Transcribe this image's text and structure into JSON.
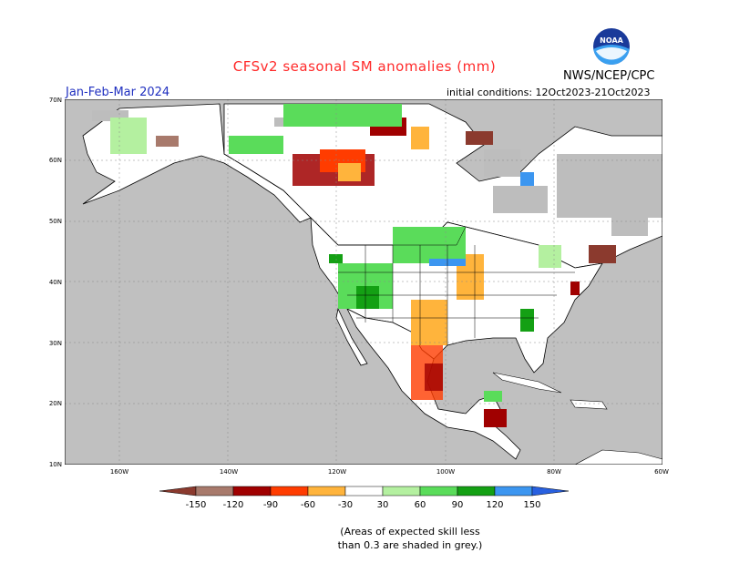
{
  "header": {
    "title": "CFSv2 seasonal SM anomalies (mm)",
    "season": "Jan-Feb-Mar 2024",
    "initial_conditions": "initial conditions: 12Oct2023-21Oct2023",
    "agency": "NWS/NCEP/CPC",
    "logo_text": "NOAA"
  },
  "axes": {
    "lat_labels": [
      "70N",
      "60N",
      "50N",
      "40N",
      "30N",
      "20N",
      "10N"
    ],
    "lon_labels": [
      "160W",
      "140W",
      "120W",
      "100W",
      "80W",
      "60W"
    ],
    "lon_range": [
      -170,
      -60
    ],
    "lat_range": [
      10,
      70
    ]
  },
  "legend": {
    "labels": [
      "-150",
      "-120",
      "-90",
      "-60",
      "-30",
      "30",
      "60",
      "90",
      "120",
      "150"
    ],
    "colors": [
      "#8b3a2e",
      "#a87a6c",
      "#a00000",
      "#ff3c00",
      "#ffb43c",
      "#ffffff",
      "#b4f0a0",
      "#5adc5a",
      "#14a014",
      "#3c96f0",
      "#2860e0"
    ]
  },
  "note": {
    "line1": "(Areas of expected skill less",
    "line2": "than 0.3 are shaded in grey.)"
  },
  "colors": {
    "ocean": "#c0c0c0",
    "land": "#ffffff",
    "title": "#ff2a2a",
    "season": "#2030c0"
  }
}
